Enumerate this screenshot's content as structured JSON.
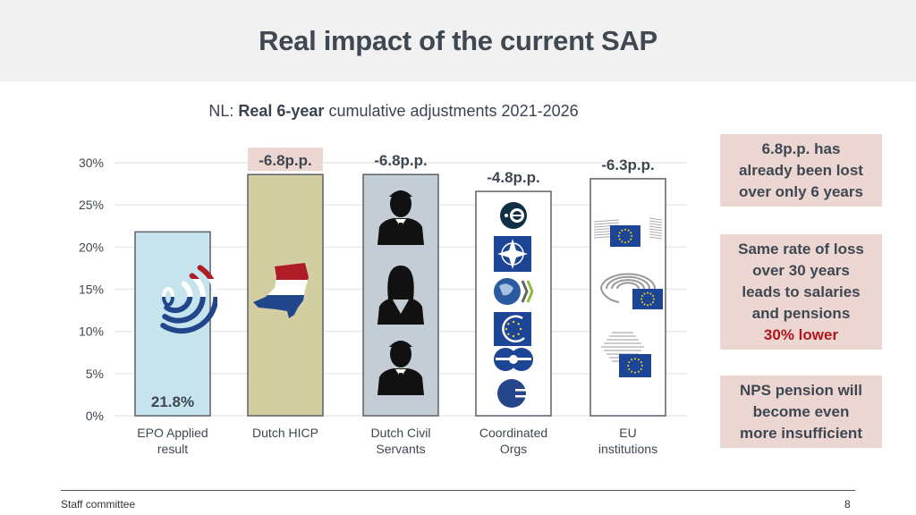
{
  "slide": {
    "title": "Real impact of the current SAP",
    "subtitle_prefix": "NL: ",
    "subtitle_bold": "Real 6-year",
    "subtitle_suffix": " cumulative adjustments 2021-2026",
    "footer_left": "Staff committee",
    "page_number": "8"
  },
  "callouts": [
    {
      "lines": [
        "6.8p.p. has",
        "already been lost",
        "over only 6 years"
      ]
    },
    {
      "lines": [
        "Same rate of loss",
        "over 30 years",
        "leads to salaries",
        "and pensions"
      ],
      "highlight": "30% lower"
    },
    {
      "lines": [
        "NPS pension will",
        "become even",
        "more insufficient"
      ]
    }
  ],
  "colors": {
    "epo_fill": "#c5e4ed",
    "hicp_fill": "#d2cea2",
    "civil_fill": "#c4cdd5",
    "orgs_fill": "#ffffff",
    "eu_fill": "#ffffff",
    "bar_stroke": "#5b6068",
    "highlight_label_bg": "#ecd6d1",
    "callout_bg": "#ecd6d1",
    "accent_red": "#b0161f",
    "nl_red": "#ae1c28",
    "nl_blue": "#21468b",
    "eu_blue": "#1d4596",
    "eu_gold": "#f5d81a"
  },
  "chart_data": {
    "type": "bar",
    "title": "NL: Real 6-year cumulative adjustments 2021-2026",
    "xlabel": "",
    "ylabel": "",
    "ylim": [
      0,
      30
    ],
    "yticks": [
      "0%",
      "5%",
      "10%",
      "15%",
      "20%",
      "25%",
      "30%"
    ],
    "ytick_values": [
      0,
      5,
      10,
      15,
      20,
      25,
      30
    ],
    "grid": true,
    "categories": [
      "EPO Applied result",
      "Dutch HICP",
      "Dutch Civil Servants",
      "Coordinated Orgs",
      "EU institutions"
    ],
    "category_lines": [
      [
        "EPO Applied",
        "result"
      ],
      [
        "Dutch HICP"
      ],
      [
        "Dutch Civil",
        "Servants"
      ],
      [
        "Coordinated",
        "Orgs"
      ],
      [
        "EU",
        "institutions"
      ]
    ],
    "values": [
      21.8,
      28.6,
      28.6,
      26.6,
      28.1
    ],
    "bar_labels": [
      "21.8%",
      "-6.8p.p.",
      "-6.8p.p.",
      "-4.8p.p.",
      "-6.3p.p."
    ],
    "bar_label_position": [
      "inside-bottom",
      "above-highlighted",
      "above",
      "above",
      "above"
    ],
    "bar_images": [
      "epo-logo",
      "netherlands-map-flag",
      "civil-servant-silhouettes",
      "coordinated-org-logos",
      "eu-institution-buildings"
    ]
  }
}
